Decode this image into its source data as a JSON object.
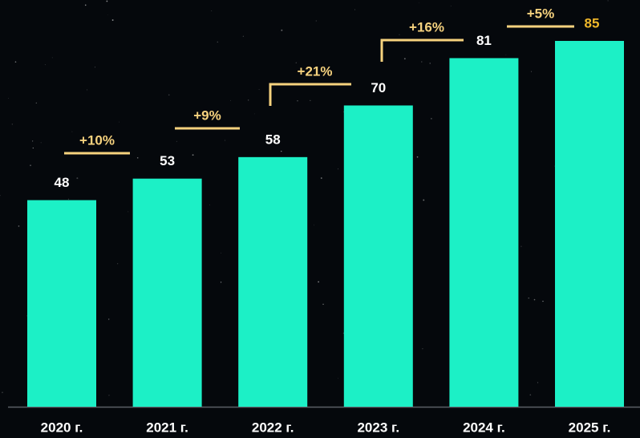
{
  "chart_data": {
    "type": "bar",
    "categories": [
      "2020 г.",
      "2021 г.",
      "2022 г.",
      "2023 г.",
      "2024 г.",
      "2025 г."
    ],
    "values": [
      48,
      53,
      58,
      70,
      81,
      85
    ],
    "color": "#1cf0c6",
    "label_color": "#ffffff",
    "highlight_label_color": "#f0b82a",
    "annotations": [
      "+10%",
      "+9%",
      "+21%",
      "+16%",
      "+5%"
    ],
    "annotation_color": "#f6d27e"
  }
}
